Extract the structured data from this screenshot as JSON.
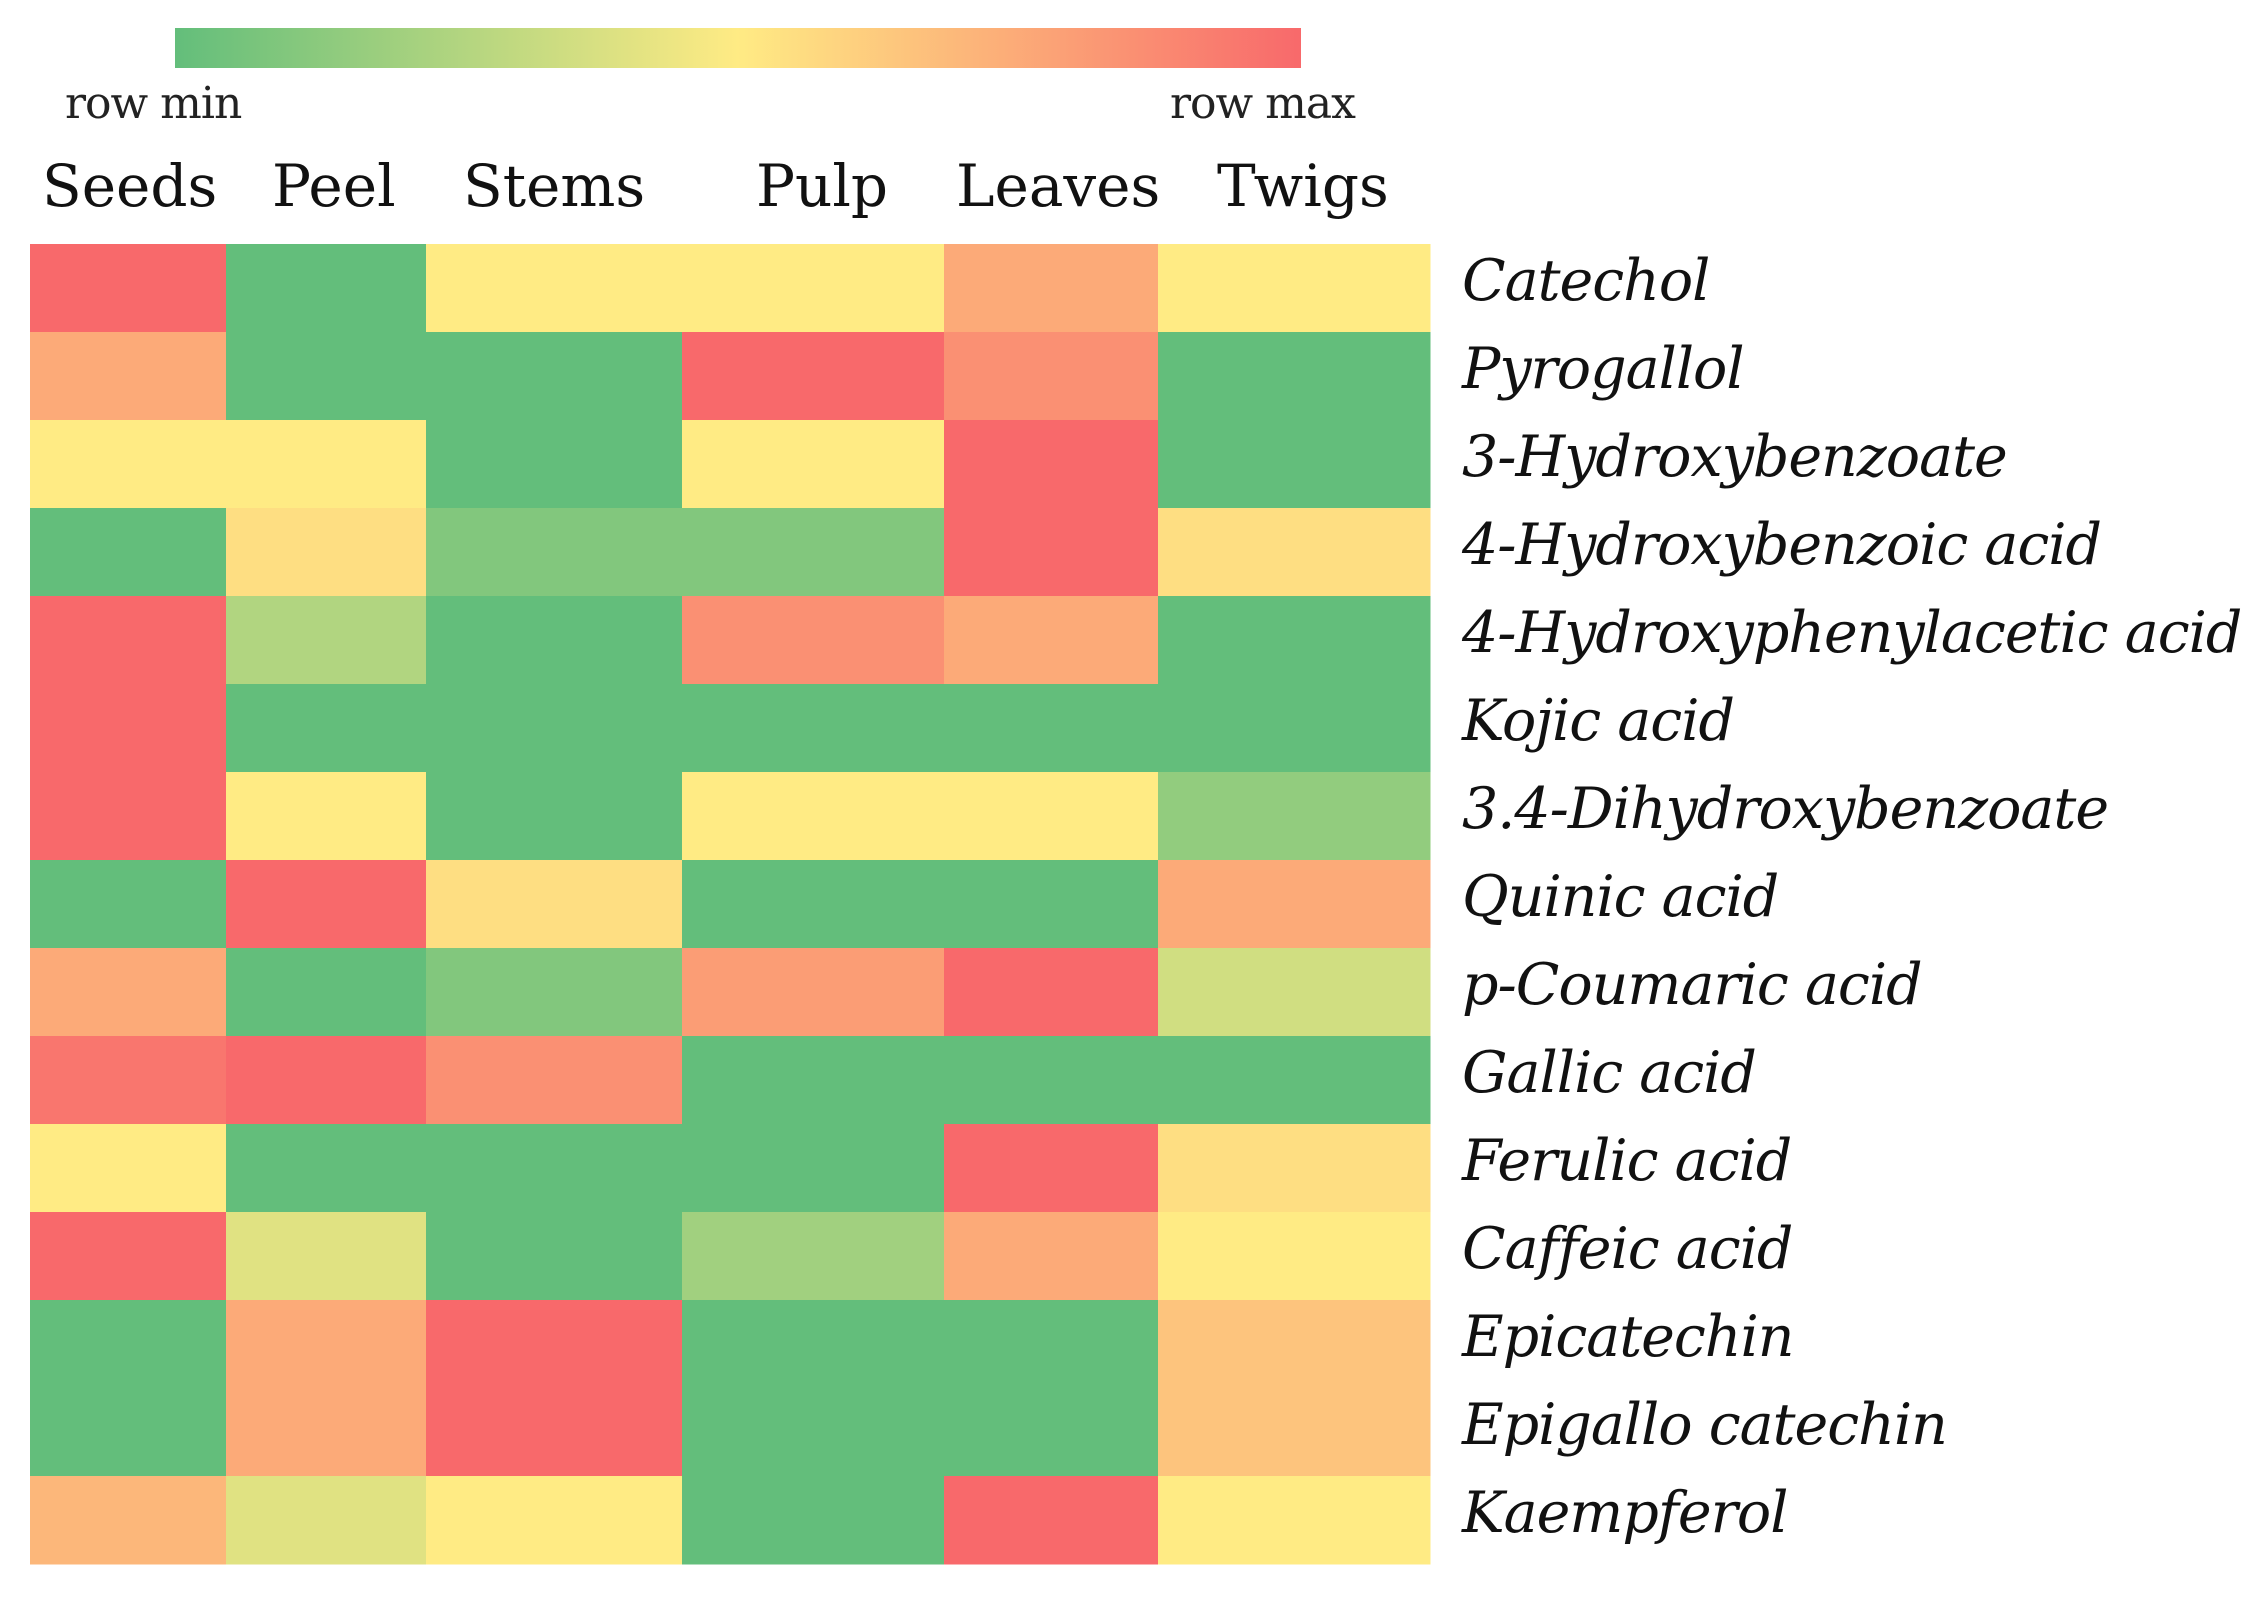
{
  "chart_data": {
    "type": "heatmap",
    "title": "",
    "legend": {
      "min_label": "row min",
      "max_label": "row max",
      "placement": "top"
    },
    "colorscale": [
      "#63be7b",
      "#ffeb84",
      "#f8696b"
    ],
    "columns": [
      "Seeds",
      "Peel",
      "Stems",
      "Pulp",
      "Leaves",
      "Twigs"
    ],
    "rows": [
      "Catechol",
      "Pyrogallol",
      "3-Hydroxybenzoate",
      "4-Hydroxybenzoic acid",
      "4-Hydroxyphenylacetic acid",
      "Kojic acid",
      "3.4-Dihydroxybenzoate",
      "Quinic acid",
      "p-Coumaric acid",
      "Gallic acid",
      "Ferulic acid",
      "Caffeic acid",
      "Epicatechin",
      "Epigallo catechin",
      "Kaempferol"
    ],
    "values": [
      [
        1.0,
        0.0,
        0.5,
        0.5,
        0.75,
        0.5
      ],
      [
        0.75,
        0.0,
        0.0,
        1.0,
        0.85,
        0.0
      ],
      [
        0.5,
        0.5,
        0.0,
        0.5,
        1.0,
        0.0
      ],
      [
        0.0,
        0.55,
        0.1,
        0.1,
        1.0,
        0.55
      ],
      [
        1.0,
        0.25,
        0.0,
        0.85,
        0.75,
        0.0
      ],
      [
        1.0,
        0.0,
        0.0,
        0.0,
        0.0,
        0.0
      ],
      [
        1.0,
        0.5,
        0.0,
        0.5,
        0.5,
        0.15
      ],
      [
        0.0,
        1.0,
        0.55,
        0.0,
        0.0,
        0.75
      ],
      [
        0.75,
        0.0,
        0.1,
        0.8,
        1.0,
        0.35
      ],
      [
        0.95,
        1.0,
        0.85,
        0.0,
        0.0,
        0.0
      ],
      [
        0.5,
        0.0,
        0.0,
        0.0,
        1.0,
        0.55
      ],
      [
        1.0,
        0.4,
        0.0,
        0.2,
        0.75,
        0.5
      ],
      [
        0.0,
        0.75,
        1.0,
        0.0,
        0.0,
        0.65
      ],
      [
        0.0,
        0.75,
        1.0,
        0.0,
        0.0,
        0.65
      ],
      [
        0.7,
        0.4,
        0.5,
        0.0,
        1.0,
        0.5
      ]
    ]
  }
}
